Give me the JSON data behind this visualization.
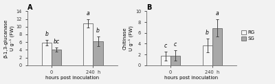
{
  "panel_A": {
    "title": "A",
    "ylabel": "β-1,3-glucanase\nU g⁻¹ (FW)",
    "xlabel": "hours post inoculation",
    "xtick_labels": [
      "0",
      "240  h"
    ],
    "ylim": [
      0,
      14
    ],
    "yticks": [
      0,
      2,
      4,
      6,
      8,
      10,
      12,
      14
    ],
    "RG_means": [
      5.9,
      10.8
    ],
    "SG_means": [
      4.1,
      6.2
    ],
    "RG_errors": [
      0.7,
      1.1
    ],
    "SG_errors": [
      0.5,
      1.3
    ],
    "RG_labels": [
      "b",
      "a"
    ],
    "SG_labels": [
      "bc",
      "b"
    ],
    "bar_width": 0.28,
    "group_positions": [
      0.7,
      1.9
    ]
  },
  "panel_B": {
    "title": "B",
    "ylabel": "Chitinase\nU g⁻¹ (FW)",
    "xlabel": "hours post inoculation",
    "xtick_labels": [
      "0",
      "240  h"
    ],
    "ylim": [
      0,
      10
    ],
    "yticks": [
      0,
      2,
      4,
      6,
      8,
      10
    ],
    "RG_means": [
      1.7,
      3.7
    ],
    "SG_means": [
      1.8,
      6.9
    ],
    "RG_errors": [
      0.8,
      1.3
    ],
    "SG_errors": [
      1.0,
      1.6
    ],
    "RG_labels": [
      "c",
      "b"
    ],
    "SG_labels": [
      "c",
      "a"
    ],
    "bar_width": 0.28,
    "group_positions": [
      0.7,
      1.9
    ]
  },
  "colors": {
    "RG": "#f5f5f5",
    "SG": "#a8a8a8"
  },
  "legend_labels": [
    "RG",
    "SG"
  ],
  "background_color": "#f2f2f2",
  "edgecolor": "#666666",
  "label_fontsize": 5.0,
  "tick_fontsize": 4.8,
  "annot_fontsize": 5.5,
  "title_fontsize": 7.0,
  "errorbar_capsize": 1.5,
  "errorbar_lw": 0.7
}
